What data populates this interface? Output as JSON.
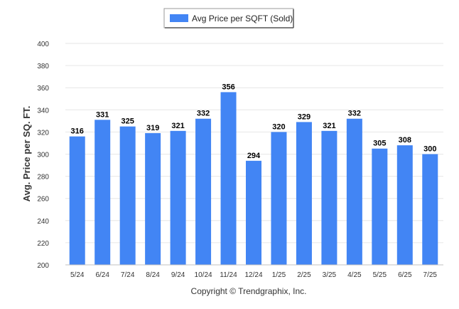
{
  "chart_data": {
    "type": "bar",
    "legend": "Avg Price per SQFT (Sold)",
    "legend_position": "top-center",
    "ylabel": "Avg. Price per SQ. FT.",
    "xlabel": "",
    "ylim": [
      200,
      400
    ],
    "yticks": [
      200,
      220,
      240,
      260,
      280,
      300,
      320,
      340,
      360,
      380,
      400
    ],
    "grid": true,
    "bar_color": "#4285f4",
    "categories": [
      "5/24",
      "6/24",
      "7/24",
      "8/24",
      "9/24",
      "10/24",
      "11/24",
      "12/24",
      "1/25",
      "2/25",
      "3/25",
      "4/25",
      "5/25",
      "6/25",
      "7/25"
    ],
    "series": [
      {
        "name": "Avg Price per SQFT (Sold)",
        "values": [
          316,
          331,
          325,
          319,
          321,
          332,
          356,
          294,
          320,
          329,
          321,
          332,
          305,
          308,
          300
        ]
      }
    ]
  },
  "footer": {
    "copyright": "Copyright © Trendgraphix, Inc."
  }
}
